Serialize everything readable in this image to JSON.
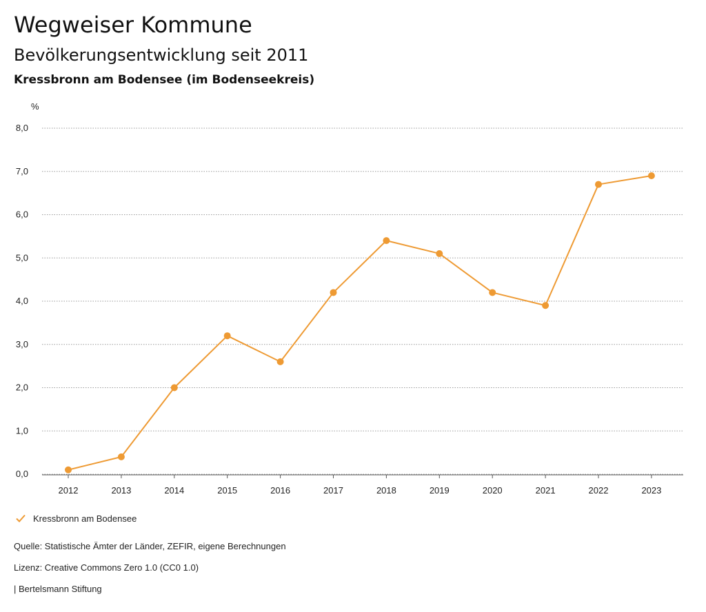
{
  "header": {
    "title": "Wegweiser Kommune",
    "subtitle": "Bevölkerungsentwicklung seit 2011",
    "region": "Kressbronn am Bodensee (im Bodenseekreis)"
  },
  "chart_data": {
    "type": "line",
    "title": "Bevölkerungsentwicklung seit 2011",
    "xlabel": "",
    "ylabel": "%",
    "categories": [
      "2012",
      "2013",
      "2014",
      "2015",
      "2016",
      "2017",
      "2018",
      "2019",
      "2020",
      "2021",
      "2022",
      "2023"
    ],
    "series": [
      {
        "name": "Kressbronn am Bodensee",
        "values": [
          0.1,
          0.4,
          2.0,
          3.2,
          2.6,
          4.2,
          5.4,
          5.1,
          4.2,
          3.9,
          6.7,
          6.9
        ]
      }
    ],
    "ylim": [
      0,
      8
    ],
    "yticks": [
      "0,0",
      "1,0",
      "2,0",
      "3,0",
      "4,0",
      "5,0",
      "6,0",
      "7,0",
      "8,0"
    ],
    "ytick_values": [
      0,
      1,
      2,
      3,
      4,
      5,
      6,
      7,
      8
    ],
    "grid": true,
    "legend_position": "bottom-left",
    "color": "#ee9a33"
  },
  "legend": {
    "label": "Kressbronn am Bodensee"
  },
  "footer": {
    "source": "Quelle: Statistische Ämter der Länder, ZEFIR, eigene Berechnungen",
    "license": "Lizenz: Creative Commons Zero 1.0 (CC0 1.0)",
    "publisher": "| Bertelsmann Stiftung"
  }
}
